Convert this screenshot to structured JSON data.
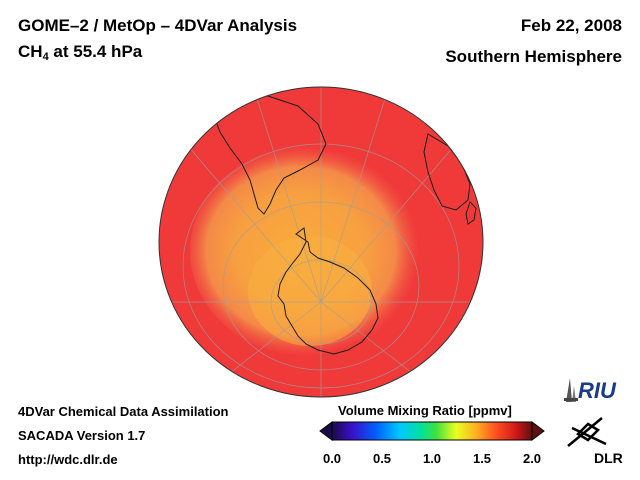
{
  "header": {
    "title_line1": "GOME–2 / MetOp – 4DVar Analysis",
    "species_main": "CH",
    "species_sub": "4",
    "species_level": " at 55.4 hPa",
    "date": "Feb 22, 2008",
    "hemisphere": "Southern Hemisphere"
  },
  "footer": {
    "line1": "4DVar Chemical Data Assimilation",
    "line2": "SACADA Version 1.7",
    "line3": "http://wdc.dlr.de"
  },
  "colorbar": {
    "title": "Volume Mixing Ratio [ppmv]",
    "min": 0.0,
    "max": 2.0,
    "ticks": [
      "0.0",
      "0.5",
      "1.0",
      "1.5",
      "2.0"
    ]
  },
  "map": {
    "projection": "orthographic",
    "center": "South Pole",
    "background_value_ppmv": 1.75,
    "polar_value_ppmv": 1.45,
    "colors": {
      "background_field": "#f03a3a",
      "polar_field": "#f7a23a",
      "coastline": "#1a1a1a",
      "graticule": "#9e9e9e"
    }
  },
  "logos": {
    "riu": "RIU",
    "dlr": "DLR"
  }
}
